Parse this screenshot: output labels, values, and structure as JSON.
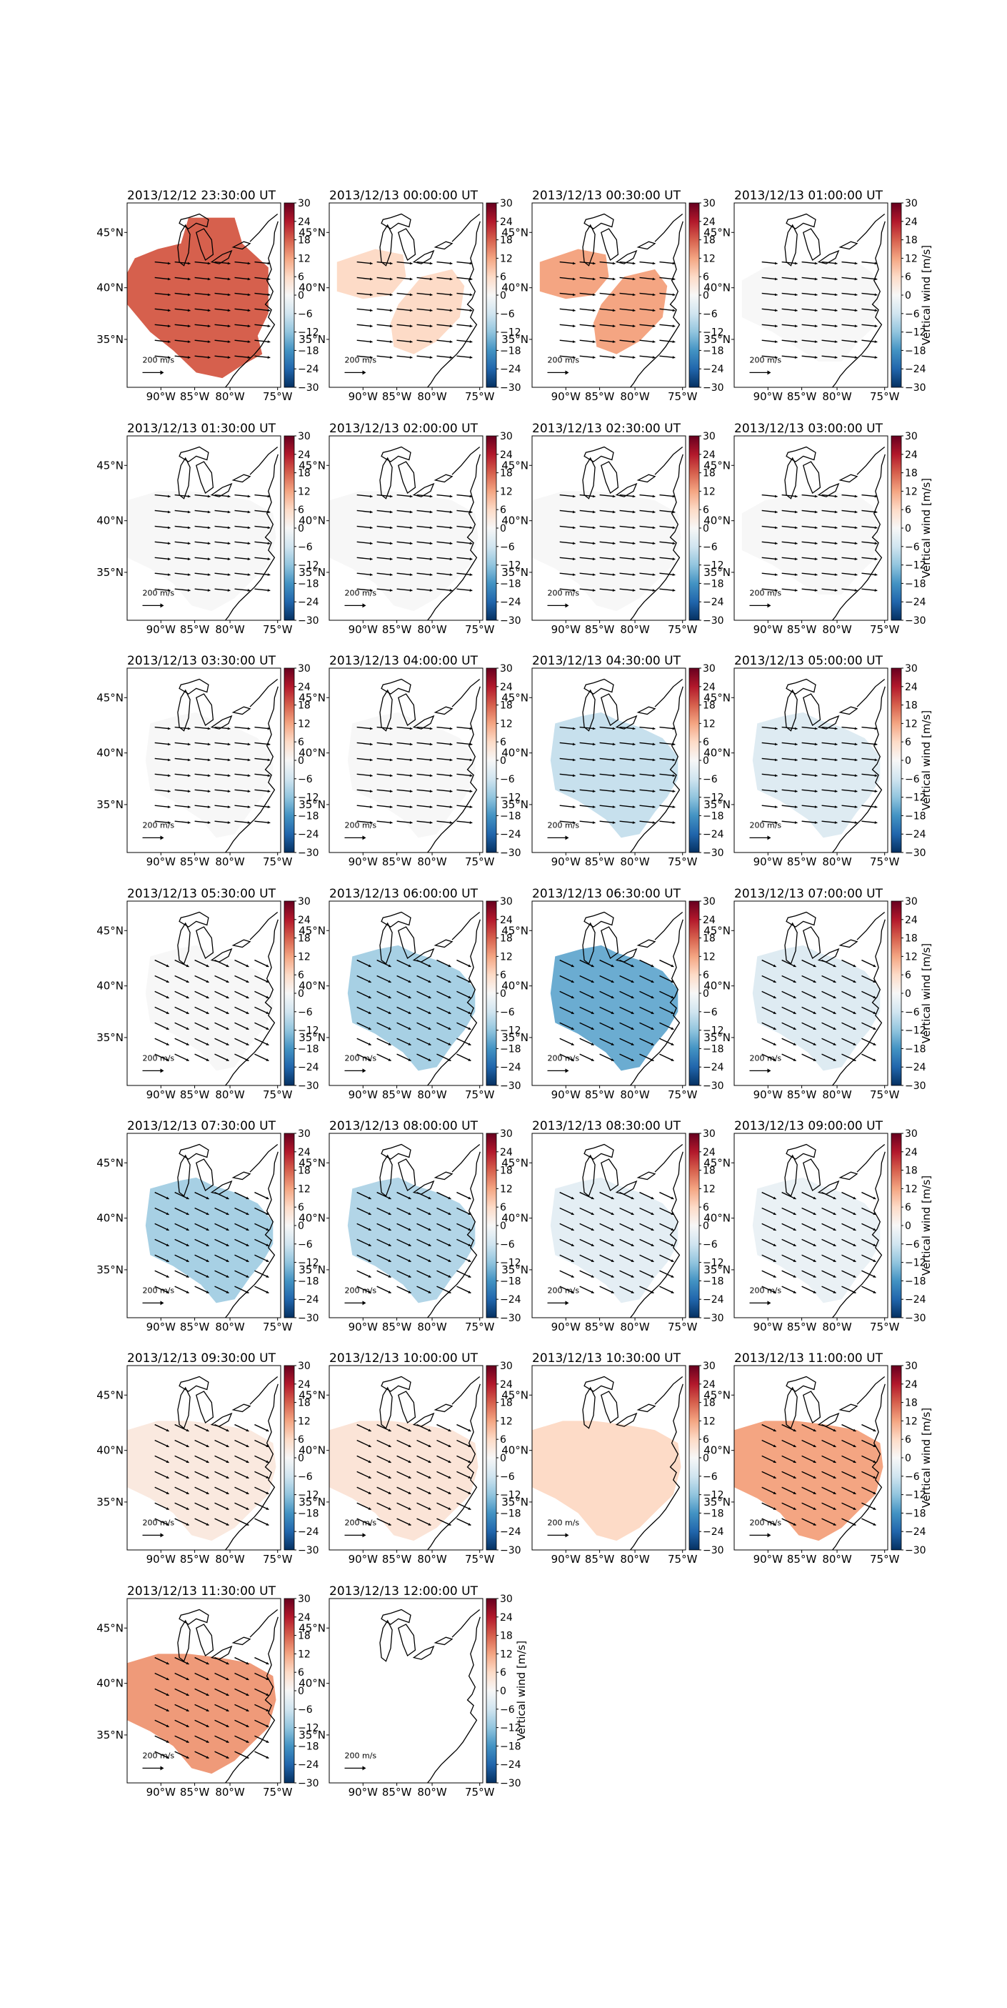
{
  "figure": {
    "colorbar_label": "Vertical wind [m/s]",
    "colorbar_ticks": [
      "30",
      "24",
      "18",
      "12",
      "6",
      "0",
      "−6",
      "−12",
      "−18",
      "−24",
      "−30"
    ],
    "lat_labels": [
      "45°N",
      "40°N",
      "35°N"
    ],
    "lon_labels": [
      "90°W",
      "85°W",
      "80°W",
      "75°W"
    ],
    "scale_label": "200 m/s",
    "colormap": "RdBu_r",
    "color_range": [
      -30,
      30
    ]
  },
  "panels": [
    {
      "title": "2013/12/12 23:30:00 UT",
      "vertical_wind": 18,
      "region": "northwest",
      "arrows": true
    },
    {
      "title": "2013/12/13 00:00:00 UT",
      "vertical_wind": 6,
      "region": "split",
      "arrows": true
    },
    {
      "title": "2013/12/13 00:30:00 UT",
      "vertical_wind": 12,
      "region": "split",
      "arrows": true
    },
    {
      "title": "2013/12/13 01:00:00 UT",
      "vertical_wind": 0,
      "region": "east",
      "arrows": true
    },
    {
      "title": "2013/12/13 01:30:00 UT",
      "vertical_wind": 0,
      "region": "wide",
      "arrows": true
    },
    {
      "title": "2013/12/13 02:00:00 UT",
      "vertical_wind": 0,
      "region": "wide",
      "arrows": true
    },
    {
      "title": "2013/12/13 02:30:00 UT",
      "vertical_wind": 0,
      "region": "wide",
      "arrows": true
    },
    {
      "title": "2013/12/13 03:00:00 UT",
      "vertical_wind": 0,
      "region": "east",
      "arrows": true
    },
    {
      "title": "2013/12/13 03:30:00 UT",
      "vertical_wind": 0,
      "region": "central",
      "arrows": true
    },
    {
      "title": "2013/12/13 04:00:00 UT",
      "vertical_wind": 0,
      "region": "central",
      "arrows": true
    },
    {
      "title": "2013/12/13 04:30:00 UT",
      "vertical_wind": -7,
      "region": "central",
      "arrows": true
    },
    {
      "title": "2013/12/13 05:00:00 UT",
      "vertical_wind": -4,
      "region": "central",
      "arrows": true
    },
    {
      "title": "2013/12/13 05:30:00 UT",
      "vertical_wind": 0,
      "region": "central",
      "arrows": true
    },
    {
      "title": "2013/12/13 06:00:00 UT",
      "vertical_wind": -10,
      "region": "central",
      "arrows": true
    },
    {
      "title": "2013/12/13 06:30:00 UT",
      "vertical_wind": -15,
      "region": "central",
      "arrows": true
    },
    {
      "title": "2013/12/13 07:00:00 UT",
      "vertical_wind": -4,
      "region": "central",
      "arrows": true
    },
    {
      "title": "2013/12/13 07:30:00 UT",
      "vertical_wind": -10,
      "region": "central",
      "arrows": true
    },
    {
      "title": "2013/12/13 08:00:00 UT",
      "vertical_wind": -9,
      "region": "central",
      "arrows": true
    },
    {
      "title": "2013/12/13 08:30:00 UT",
      "vertical_wind": -3,
      "region": "central",
      "arrows": true
    },
    {
      "title": "2013/12/13 09:00:00 UT",
      "vertical_wind": -2,
      "region": "central",
      "arrows": true
    },
    {
      "title": "2013/12/13 09:30:00 UT",
      "vertical_wind": 3,
      "region": "wide",
      "arrows": true
    },
    {
      "title": "2013/12/13 10:00:00 UT",
      "vertical_wind": 4,
      "region": "wide",
      "arrows": true
    },
    {
      "title": "2013/12/13 10:30:00 UT",
      "vertical_wind": 6,
      "region": "wide",
      "arrows": false
    },
    {
      "title": "2013/12/13 11:00:00 UT",
      "vertical_wind": 12,
      "region": "wide",
      "arrows": true
    },
    {
      "title": "2013/12/13 11:30:00 UT",
      "vertical_wind": 13,
      "region": "wide",
      "arrows": true
    },
    {
      "title": "2013/12/13 12:00:00 UT",
      "vertical_wind": null,
      "region": "none",
      "arrows": false
    }
  ]
}
